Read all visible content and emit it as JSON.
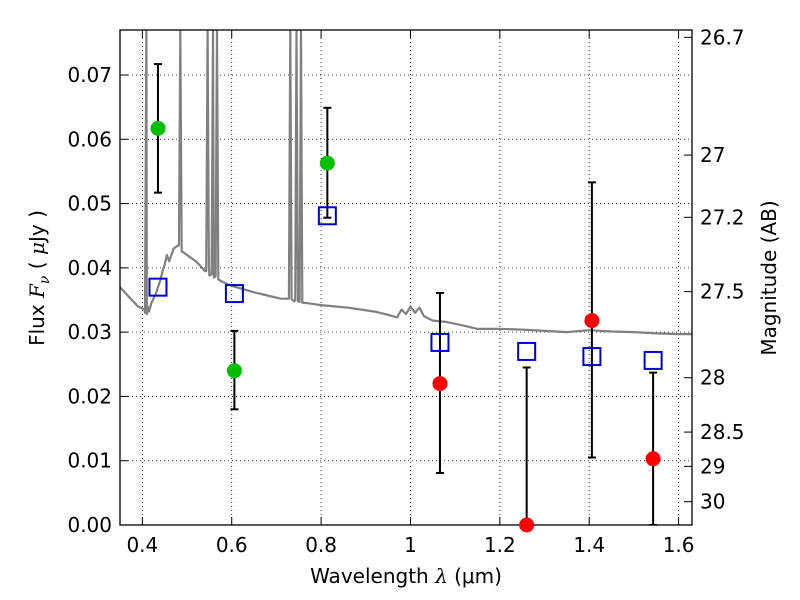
{
  "chart_data": {
    "type": "scatter",
    "xlabel": "Wavelength  λ (μm)",
    "xlabel_parts": {
      "pre": "Wavelength  ",
      "sym": "λ",
      "post": " (μm)"
    },
    "ylabel": "Flux  Fν  ( μJy )",
    "ylabel_parts": {
      "pre": "Flux  ",
      "sym": "F",
      "sub": "ν",
      "mid": "  ( ",
      "mu": "μ",
      "post": "Jy )"
    },
    "y2label": "Magnitude (AB)",
    "xlim": [
      0.35,
      1.63
    ],
    "ylim": [
      0.0,
      0.077
    ],
    "grid": true,
    "x_ticks": [
      0.4,
      0.6,
      0.8,
      1.0,
      1.2,
      1.4,
      1.6
    ],
    "x_tick_labels": [
      "0.4",
      "0.6",
      "0.8",
      "1",
      "1.2",
      "1.4",
      "1.6"
    ],
    "y_ticks": [
      0.0,
      0.01,
      0.02,
      0.03,
      0.04,
      0.05,
      0.06,
      0.07
    ],
    "y_tick_labels": [
      "0.00",
      "0.01",
      "0.02",
      "0.03",
      "0.04",
      "0.05",
      "0.06",
      "0.07"
    ],
    "y2_ticks": [
      26.7,
      27,
      27.2,
      27.5,
      28,
      28.5,
      29,
      30
    ],
    "y2_tick_labels": [
      "26.7",
      "27",
      "27.2",
      "27.5",
      "28",
      "28.5",
      "29",
      "30"
    ],
    "colors": {
      "detected": "#00c000",
      "undetected": "#ff0000",
      "model_band": "#0000cc",
      "template": "#808080",
      "errorbar": "#000000"
    },
    "series": [
      {
        "marker": "circle",
        "color": "#00c000",
        "points": [
          {
            "x": 0.435,
            "y": 0.0617,
            "err_low": 0.0517,
            "err_high": 0.0717
          },
          {
            "x": 0.606,
            "y": 0.024,
            "err_low": 0.018,
            "err_high": 0.0302
          },
          {
            "x": 0.814,
            "y": 0.0563,
            "err_low": 0.0478,
            "err_high": 0.0649
          }
        ]
      },
      {
        "marker": "circle",
        "color": "#ff0000",
        "points": [
          {
            "x": 1.066,
            "y": 0.022,
            "err_low": 0.0081,
            "err_high": 0.0361
          },
          {
            "x": 1.26,
            "y": 0.0,
            "err_low": 0.0,
            "err_high": 0.0245
          },
          {
            "x": 1.406,
            "y": 0.0318,
            "err_low": 0.0105,
            "err_high": 0.0533
          },
          {
            "x": 1.543,
            "y": 0.0103,
            "err_low": 0.0,
            "err_high": 0.0237
          }
        ]
      },
      {
        "marker": "square",
        "color": "#0000cc",
        "points": [
          {
            "x": 0.435,
            "y": 0.037
          },
          {
            "x": 0.606,
            "y": 0.036
          },
          {
            "x": 0.814,
            "y": 0.0481
          },
          {
            "x": 1.066,
            "y": 0.0284
          },
          {
            "x": 1.26,
            "y": 0.027
          },
          {
            "x": 1.406,
            "y": 0.0262
          },
          {
            "x": 1.543,
            "y": 0.0256
          }
        ]
      }
    ],
    "template_line": {
      "color": "#808080",
      "points": [
        [
          0.35,
          0.037
        ],
        [
          0.37,
          0.0355
        ],
        [
          0.39,
          0.034
        ],
        [
          0.405,
          0.0335
        ],
        [
          0.41,
          0.0328
        ],
        [
          0.415,
          0.0332
        ],
        [
          0.42,
          0.0345
        ],
        [
          0.43,
          0.036
        ],
        [
          0.44,
          0.038
        ],
        [
          0.445,
          0.0395
        ],
        [
          0.45,
          0.0405
        ],
        [
          0.455,
          0.042
        ],
        [
          0.46,
          0.041
        ],
        [
          0.47,
          0.043
        ],
        [
          0.48,
          0.0435
        ],
        [
          0.49,
          0.0425
        ],
        [
          0.5,
          0.042
        ],
        [
          0.51,
          0.0415
        ],
        [
          0.52,
          0.041
        ],
        [
          0.53,
          0.0403
        ],
        [
          0.54,
          0.0395
        ],
        [
          0.55,
          0.0388
        ],
        [
          0.56,
          0.0385
        ],
        [
          0.57,
          0.0382
        ],
        [
          0.58,
          0.0378
        ],
        [
          0.6,
          0.0372
        ],
        [
          0.62,
          0.0368
        ],
        [
          0.65,
          0.0362
        ],
        [
          0.68,
          0.0357
        ],
        [
          0.71,
          0.0352
        ],
        [
          0.74,
          0.0348
        ],
        [
          0.77,
          0.0345
        ],
        [
          0.8,
          0.0342
        ],
        [
          0.83,
          0.034
        ],
        [
          0.86,
          0.0338
        ],
        [
          0.89,
          0.0335
        ],
        [
          0.92,
          0.0332
        ],
        [
          0.95,
          0.0327
        ],
        [
          0.97,
          0.0323
        ],
        [
          0.98,
          0.0335
        ],
        [
          0.99,
          0.0328
        ],
        [
          1.0,
          0.034
        ],
        [
          1.01,
          0.033
        ],
        [
          1.02,
          0.0338
        ],
        [
          1.03,
          0.0325
        ],
        [
          1.05,
          0.0318
        ],
        [
          1.08,
          0.0316
        ],
        [
          1.1,
          0.0313
        ],
        [
          1.12,
          0.031
        ],
        [
          1.15,
          0.0305
        ],
        [
          1.2,
          0.0305
        ],
        [
          1.25,
          0.0304
        ],
        [
          1.3,
          0.0302
        ],
        [
          1.35,
          0.03
        ],
        [
          1.4,
          0.0303
        ],
        [
          1.45,
          0.0301
        ],
        [
          1.5,
          0.03
        ],
        [
          1.55,
          0.0298
        ],
        [
          1.6,
          0.0297
        ],
        [
          1.63,
          0.0297
        ]
      ],
      "spikes": [
        [
          0.406,
          0.033
        ],
        [
          0.409,
          0.077
        ],
        [
          0.412,
          0.034
        ],
        [
          0.482,
          0.0435
        ],
        [
          0.485,
          0.077
        ],
        [
          0.488,
          0.0425
        ],
        [
          0.543,
          0.0395
        ],
        [
          0.546,
          0.077
        ],
        [
          0.549,
          0.04
        ],
        [
          0.555,
          0.039
        ],
        [
          0.558,
          0.077
        ],
        [
          0.561,
          0.0385
        ],
        [
          0.564,
          0.0387
        ],
        [
          0.567,
          0.077
        ],
        [
          0.57,
          0.0382
        ],
        [
          0.728,
          0.0352
        ],
        [
          0.731,
          0.077
        ],
        [
          0.734,
          0.0351
        ],
        [
          0.742,
          0.0349
        ],
        [
          0.745,
          0.077
        ],
        [
          0.748,
          0.0348
        ],
        [
          0.752,
          0.0347
        ],
        [
          0.755,
          0.077
        ],
        [
          0.758,
          0.0346
        ]
      ]
    }
  }
}
